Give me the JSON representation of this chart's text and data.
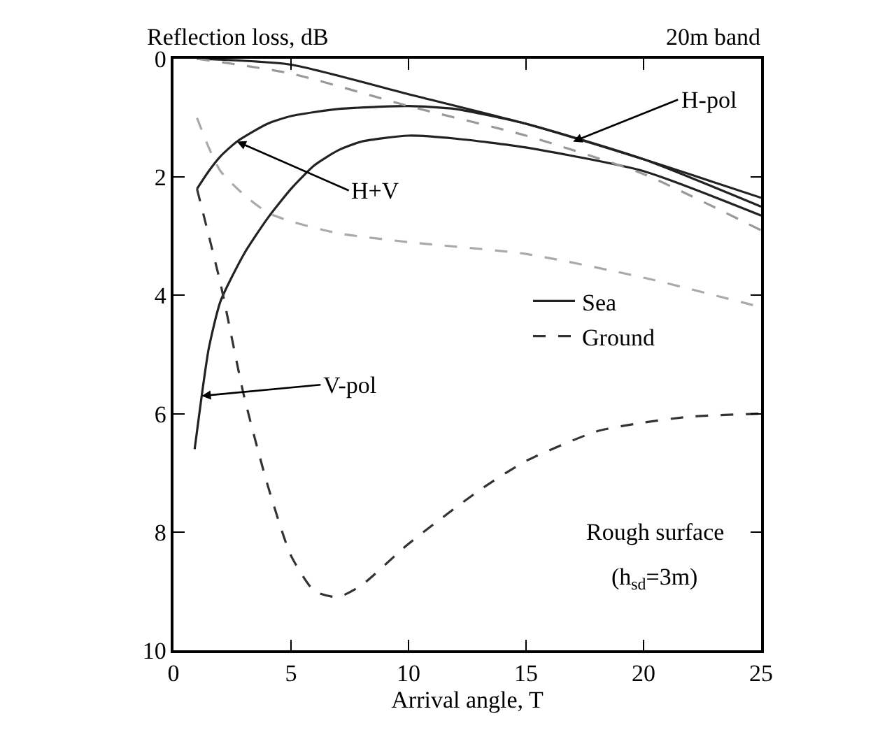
{
  "chart_data": {
    "type": "line",
    "xlabel": "Arrival angle, T",
    "ylabel": "Reflection loss, dB",
    "xlim": [
      0,
      25
    ],
    "xticks": [
      0,
      5,
      10,
      15,
      20,
      25
    ],
    "ylim": [
      10,
      0
    ],
    "yticks": [
      0,
      2,
      4,
      6,
      8,
      10
    ],
    "legend": "right",
    "series": [
      {
        "name": "Sea",
        "color": "#222222",
        "line_style": "solid",
        "x": [
          1,
          5,
          10,
          15,
          20,
          25
        ],
        "values": [
          0,
          0.1,
          0.6,
          1.1,
          1.7,
          2.35
        ]
      },
      {
        "color": "#222222",
        "line_style": "solid",
        "x": [
          1,
          1.5,
          2,
          2.7,
          4,
          5,
          7,
          10,
          12,
          15,
          20,
          25
        ],
        "values": [
          2.2,
          1.9,
          1.65,
          1.4,
          1.1,
          0.97,
          0.85,
          0.8,
          0.85,
          1.1,
          1.7,
          2.5
        ]
      },
      {
        "color": "#222222",
        "line_style": "solid",
        "x": [
          0.9,
          1.2,
          1.5,
          2,
          3,
          4,
          5,
          6,
          7,
          8,
          10,
          12,
          15,
          20,
          25
        ],
        "values": [
          6.6,
          5.7,
          4.9,
          4.1,
          3.3,
          2.7,
          2.2,
          1.8,
          1.55,
          1.4,
          1.3,
          1.35,
          1.5,
          1.9,
          2.65
        ]
      },
      {
        "color": "#999999",
        "line_style": "dashed",
        "x": [
          1,
          5,
          10,
          15,
          20,
          25
        ],
        "values": [
          0,
          0.25,
          0.8,
          1.3,
          1.95,
          2.9
        ]
      },
      {
        "color": "#aaaaaa",
        "line_style": "dashed",
        "x": [
          1,
          1.5,
          2,
          3,
          4,
          5,
          7,
          10,
          15,
          20,
          25
        ],
        "values": [
          1.0,
          1.5,
          1.9,
          2.3,
          2.6,
          2.75,
          2.95,
          3.1,
          3.3,
          3.7,
          4.2
        ]
      },
      {
        "name": "Ground",
        "color": "#333333",
        "line_style": "dashed",
        "x": [
          1,
          2,
          3,
          4,
          5,
          6,
          7,
          8,
          10,
          13,
          15,
          18,
          20,
          22,
          25
        ],
        "values": [
          2.2,
          3.8,
          5.7,
          7.2,
          8.4,
          9.0,
          9.1,
          8.9,
          8.2,
          7.3,
          6.8,
          6.3,
          6.15,
          6.05,
          6.0
        ]
      }
    ],
    "annotations": [
      {
        "text": "H-pol",
        "x": 17,
        "y": 1.4
      },
      {
        "text": "H+V",
        "x": 2.7,
        "y": 1.4
      },
      {
        "text": "V-pol",
        "x": 1.2,
        "y": 5.7
      },
      "20m band",
      "Rough surface",
      "(h$_{sd}$=3m)"
    ]
  }
}
